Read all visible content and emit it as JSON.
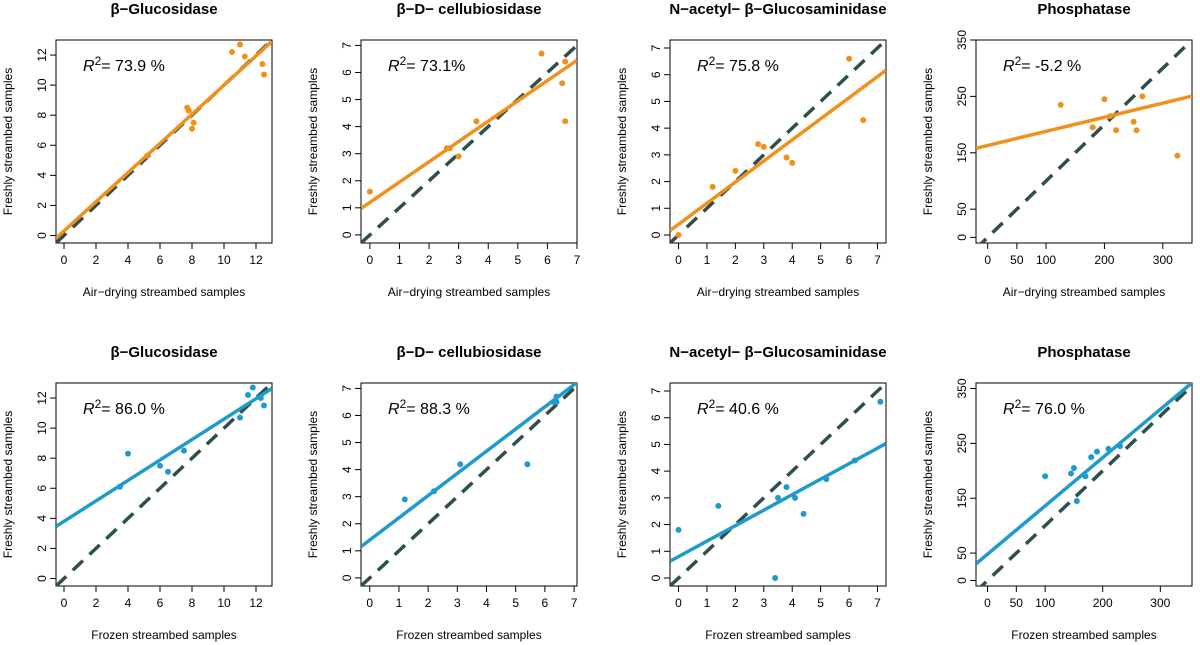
{
  "figure": {
    "orange": "#f0911d",
    "blue": "#1f9bcb",
    "dashed": "#2f4f4f"
  },
  "chart_data": [
    {
      "type": "scatter",
      "title": "β−Glucosidase",
      "xlabel": "Air−drying streambed samples",
      "ylabel": "Freshly streambed samples",
      "r2_prefix": "= 73.9 %",
      "color": "orange",
      "xlim": [
        -0.5,
        13
      ],
      "ylim": [
        -0.5,
        13
      ],
      "xticks": [
        0,
        2,
        4,
        6,
        8,
        10,
        12
      ],
      "yticks": [
        0,
        2,
        4,
        6,
        8,
        10,
        12
      ],
      "x": [
        5.2,
        7.7,
        7.8,
        8.0,
        8.1,
        10.5,
        11.0,
        11.3,
        12.4,
        12.5
      ],
      "y": [
        5.3,
        8.5,
        8.3,
        7.1,
        7.5,
        12.2,
        12.7,
        11.9,
        11.4,
        10.7
      ],
      "fit": {
        "intercept": 0.3,
        "slope": 0.97
      }
    },
    {
      "type": "scatter",
      "title": "β−D− cellubiosidase",
      "xlabel": "Air−drying streambed samples",
      "ylabel": "Freshly streambed samples",
      "r2_prefix": "= 73.1%",
      "color": "orange",
      "xlim": [
        -0.3,
        7
      ],
      "ylim": [
        -0.3,
        7.2
      ],
      "xticks": [
        0,
        1,
        2,
        3,
        4,
        5,
        6,
        7
      ],
      "yticks": [
        0,
        1,
        2,
        3,
        4,
        5,
        6,
        7
      ],
      "x": [
        0.0,
        2.6,
        2.7,
        3.0,
        3.6,
        5.8,
        6.5,
        6.6,
        6.6
      ],
      "y": [
        1.6,
        3.2,
        3.2,
        2.9,
        4.2,
        6.7,
        5.6,
        6.4,
        4.2
      ],
      "fit": {
        "intercept": 1.2,
        "slope": 0.75
      }
    },
    {
      "type": "scatter",
      "title": "N−acetyl− β−Glucosaminidase",
      "xlabel": "Air−drying streambed samples",
      "ylabel": "Freshly streambed samples",
      "r2_prefix": "= 75.8 %",
      "color": "orange",
      "xlim": [
        -0.3,
        7.3
      ],
      "ylim": [
        -0.3,
        7.3
      ],
      "xticks": [
        0,
        1,
        2,
        3,
        4,
        5,
        6,
        7
      ],
      "yticks": [
        0,
        1,
        2,
        3,
        4,
        5,
        6,
        7
      ],
      "x": [
        0.0,
        1.2,
        2.0,
        2.8,
        3.0,
        3.8,
        4.0,
        6.0,
        6.5
      ],
      "y": [
        0.0,
        1.8,
        2.4,
        3.4,
        3.3,
        2.9,
        2.7,
        6.6,
        4.3
      ],
      "fit": {
        "intercept": 0.4,
        "slope": 0.79
      }
    },
    {
      "type": "scatter",
      "title": "Phosphatase",
      "xlabel": "Air−drying streambed samples",
      "ylabel": "Freshly streambed samples",
      "r2_prefix": "= -5.2 %",
      "color": "orange",
      "xlim": [
        -20,
        350
      ],
      "ylim": [
        -10,
        350
      ],
      "xticks": [
        0,
        50,
        100,
        200,
        300
      ],
      "yticks": [
        0,
        50,
        150,
        250,
        350
      ],
      "x": [
        125,
        180,
        200,
        210,
        220,
        250,
        255,
        265,
        325
      ],
      "y": [
        235,
        195,
        245,
        215,
        190,
        205,
        190,
        250,
        145
      ],
      "fit": {
        "intercept": 163,
        "slope": 0.25
      }
    },
    {
      "type": "scatter",
      "title": "β−Glucosidase",
      "xlabel": "Frozen streambed samples",
      "ylabel": "Freshly streambed samples",
      "r2_prefix": "= 86.0 %",
      "color": "blue",
      "xlim": [
        -0.5,
        13
      ],
      "ylim": [
        -0.5,
        13
      ],
      "xticks": [
        0,
        2,
        4,
        6,
        8,
        10,
        12
      ],
      "yticks": [
        0,
        2,
        4,
        6,
        8,
        10,
        12
      ],
      "x": [
        3.5,
        4.0,
        6.0,
        6.5,
        7.5,
        11.0,
        11.5,
        11.8,
        12.3,
        12.5
      ],
      "y": [
        6.1,
        8.3,
        7.5,
        7.1,
        8.5,
        10.7,
        12.2,
        12.7,
        12.0,
        11.5
      ],
      "fit": {
        "intercept": 3.8,
        "slope": 0.68
      }
    },
    {
      "type": "scatter",
      "title": "β−D− cellubiosidase",
      "xlabel": "Frozen streambed samples",
      "ylabel": "Freshly streambed samples",
      "r2_prefix": "= 88.3 %",
      "color": "blue",
      "xlim": [
        -0.3,
        7.1
      ],
      "ylim": [
        -0.3,
        7.2
      ],
      "xticks": [
        0,
        1,
        2,
        3,
        4,
        5,
        6,
        7
      ],
      "yticks": [
        0,
        1,
        2,
        3,
        4,
        5,
        6,
        7
      ],
      "x": [
        1.2,
        2.2,
        3.1,
        5.4,
        6.3,
        6.4,
        6.4
      ],
      "y": [
        2.9,
        3.2,
        4.2,
        4.2,
        6.5,
        6.7,
        6.5
      ],
      "fit": {
        "intercept": 1.4,
        "slope": 0.82
      }
    },
    {
      "type": "scatter",
      "title": "N−acetyl− β−Glucosaminidase",
      "xlabel": "Frozen streambed samples",
      "ylabel": "Freshly streambed samples",
      "r2_prefix": "= 40.6 %",
      "color": "blue",
      "xlim": [
        -0.3,
        7.3
      ],
      "ylim": [
        -0.3,
        7.3
      ],
      "xticks": [
        0,
        1,
        2,
        3,
        4,
        5,
        6,
        7
      ],
      "yticks": [
        0,
        1,
        2,
        3,
        4,
        5,
        6,
        7
      ],
      "x": [
        0.0,
        1.4,
        3.4,
        3.5,
        3.8,
        4.1,
        4.4,
        5.2,
        6.2,
        7.1
      ],
      "y": [
        1.8,
        2.7,
        0.0,
        3.0,
        3.4,
        3.0,
        2.4,
        3.7,
        4.4,
        6.6
      ],
      "fit": {
        "intercept": 0.8,
        "slope": 0.58
      }
    },
    {
      "type": "scatter",
      "title": "Phosphatase",
      "xlabel": "Frozen streambed samples",
      "ylabel": "Freshly streambed samples",
      "r2_prefix": "= 76.0 %",
      "color": "blue",
      "xlim": [
        -20,
        355
      ],
      "ylim": [
        -10,
        360
      ],
      "xticks": [
        0,
        50,
        100,
        200,
        300
      ],
      "yticks": [
        0,
        50,
        150,
        250,
        350
      ],
      "x": [
        100,
        145,
        150,
        155,
        170,
        180,
        190,
        210,
        230
      ],
      "y": [
        190,
        195,
        205,
        145,
        190,
        225,
        235,
        240,
        245
      ],
      "fit": {
        "intercept": 48,
        "slope": 0.88
      }
    }
  ]
}
